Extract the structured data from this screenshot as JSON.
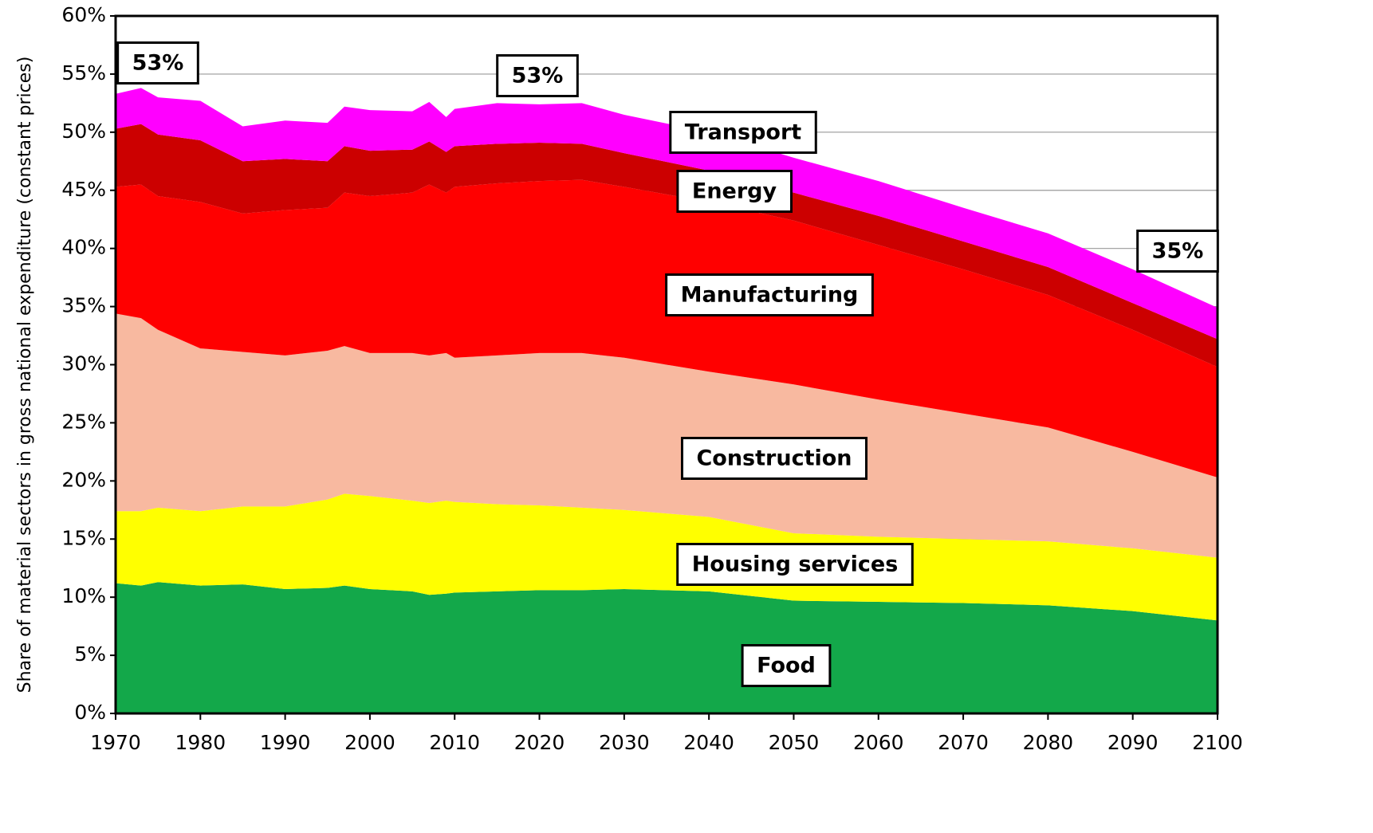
{
  "chart_data": {
    "type": "stacked_area",
    "y_label": "Share of material sectors in gross national expenditure (constant prices)",
    "x": [
      1970,
      1973,
      1975,
      1980,
      1985,
      1990,
      1995,
      1997,
      2000,
      2005,
      2007,
      2009,
      2010,
      2015,
      2020,
      2025,
      2030,
      2040,
      2050,
      2060,
      2070,
      2080,
      2090,
      2100
    ],
    "series": [
      {
        "name": "Food",
        "color": "#13a84a",
        "values": [
          11.2,
          11.0,
          11.3,
          11.0,
          11.1,
          10.7,
          10.8,
          11.0,
          10.7,
          10.5,
          10.2,
          10.3,
          10.4,
          10.5,
          10.6,
          10.6,
          10.7,
          10.5,
          9.7,
          9.6,
          9.5,
          9.3,
          8.8,
          8.0
        ]
      },
      {
        "name": "Housing services",
        "color": "#ffff00",
        "values": [
          6.2,
          6.4,
          6.4,
          6.4,
          6.7,
          7.1,
          7.6,
          7.9,
          8.0,
          7.8,
          7.9,
          8.0,
          7.8,
          7.5,
          7.3,
          7.1,
          6.8,
          6.4,
          5.8,
          5.6,
          5.5,
          5.5,
          5.4,
          5.4
        ]
      },
      {
        "name": "Construction",
        "color": "#f8b9a0",
        "values": [
          17.0,
          16.6,
          15.3,
          14.0,
          13.3,
          13.0,
          12.8,
          12.7,
          12.3,
          12.7,
          12.7,
          12.7,
          12.4,
          12.8,
          13.1,
          13.3,
          13.1,
          12.5,
          12.8,
          11.8,
          10.8,
          9.8,
          8.3,
          6.9
        ]
      },
      {
        "name": "Manufacturing",
        "color": "#ff0000",
        "values": [
          10.9,
          11.5,
          11.5,
          12.6,
          11.9,
          12.5,
          12.3,
          13.2,
          13.5,
          13.8,
          14.7,
          13.8,
          14.7,
          14.8,
          14.8,
          14.9,
          14.7,
          14.6,
          14.1,
          13.3,
          12.4,
          11.4,
          10.5,
          9.5
        ]
      },
      {
        "name": "Energy",
        "color": "#cc0000",
        "values": [
          5.0,
          5.2,
          5.3,
          5.3,
          4.5,
          4.4,
          4.0,
          4.0,
          3.9,
          3.7,
          3.7,
          3.5,
          3.5,
          3.4,
          3.3,
          3.1,
          2.9,
          2.7,
          2.4,
          2.5,
          2.4,
          2.4,
          2.3,
          2.4
        ]
      },
      {
        "name": "Transport",
        "color": "#ff00ff",
        "values": [
          3.0,
          3.1,
          3.2,
          3.4,
          3.0,
          3.3,
          3.3,
          3.4,
          3.5,
          3.3,
          3.4,
          3.0,
          3.2,
          3.5,
          3.3,
          3.5,
          3.3,
          3.3,
          3.0,
          3.0,
          2.9,
          2.9,
          2.9,
          2.7
        ]
      }
    ],
    "annotations": [
      "53%",
      "53%",
      "35%"
    ],
    "xlim": [
      1970,
      2100
    ],
    "xticks": [
      1970,
      1980,
      1990,
      2000,
      2010,
      2020,
      2030,
      2040,
      2050,
      2060,
      2070,
      2080,
      2090,
      2100
    ],
    "ylim": [
      0,
      60
    ],
    "yticks": [
      {
        "value": 0,
        "label": "0%"
      },
      {
        "value": 5,
        "label": "5%"
      },
      {
        "value": 10,
        "label": "10%"
      },
      {
        "value": 15,
        "label": "15%"
      },
      {
        "value": 20,
        "label": "20%"
      },
      {
        "value": 25,
        "label": "25%"
      },
      {
        "value": 30,
        "label": "30%"
      },
      {
        "value": 35,
        "label": "35%"
      },
      {
        "value": 40,
        "label": "40%"
      },
      {
        "value": 45,
        "label": "45%"
      },
      {
        "value": 50,
        "label": "50%"
      },
      {
        "value": 55,
        "label": "55%"
      },
      {
        "value": 60,
        "label": "60%"
      }
    ],
    "grid": true
  }
}
